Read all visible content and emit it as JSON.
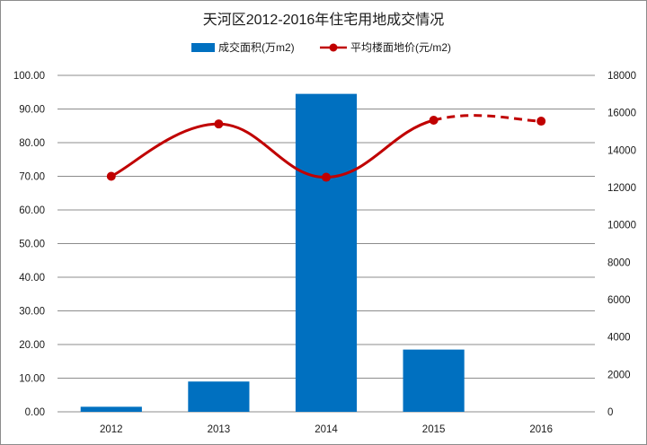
{
  "chart_data": {
    "type": "bar+line",
    "title": "天河区2012-2016年住宅用地成交情况",
    "categories": [
      "2012",
      "2013",
      "2014",
      "2015",
      "2016"
    ],
    "series": [
      {
        "name": "成交面积(万m2)",
        "type": "bar",
        "axis": "left",
        "color": "#0070c0",
        "values": [
          1.5,
          9.0,
          94.5,
          18.5,
          0
        ]
      },
      {
        "name": "平均楼面地价(元/m2)",
        "type": "line",
        "axis": "right",
        "color": "#c00000",
        "marker_color": "#c00000",
        "dashed_last_segment": true,
        "values": [
          12600,
          15400,
          12550,
          15600,
          15550
        ]
      }
    ],
    "y_left": {
      "range": [
        0,
        100
      ],
      "ticks": [
        "0.00",
        "10.00",
        "20.00",
        "30.00",
        "40.00",
        "50.00",
        "60.00",
        "70.00",
        "80.00",
        "90.00",
        "100.00"
      ]
    },
    "y_right": {
      "range": [
        0,
        18000
      ],
      "ticks": [
        "0",
        "2000",
        "4000",
        "6000",
        "8000",
        "10000",
        "12000",
        "14000",
        "16000",
        "18000"
      ]
    },
    "grid": true,
    "legend_position": "top-center"
  }
}
